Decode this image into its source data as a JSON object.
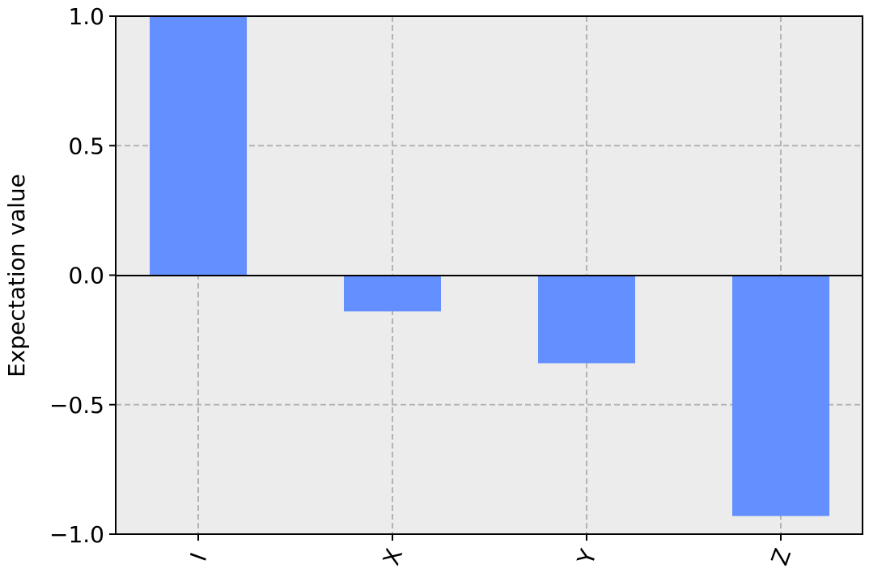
{
  "chart_data": {
    "type": "bar",
    "title": "",
    "xlabel": "",
    "ylabel": "Expectation value",
    "categories": [
      "I",
      "X",
      "Y",
      "Z"
    ],
    "values": [
      1.0,
      -0.14,
      -0.34,
      -0.93
    ],
    "ylim": [
      -1.0,
      1.0
    ],
    "yticks": [
      "−1.0",
      "−0.5",
      "0.0",
      "0.5",
      "1.0"
    ],
    "ytick_values": [
      -1.0,
      -0.5,
      0.0,
      0.5,
      1.0
    ],
    "grid": true,
    "grid_style": "dashed",
    "legend": "none",
    "xtick_rotation": "-70",
    "colors": {
      "bar": "#648fff",
      "plot_background": "#ececec",
      "grid": "#b3b3b3",
      "axis": "#000000",
      "zero_line": "#000000"
    }
  }
}
